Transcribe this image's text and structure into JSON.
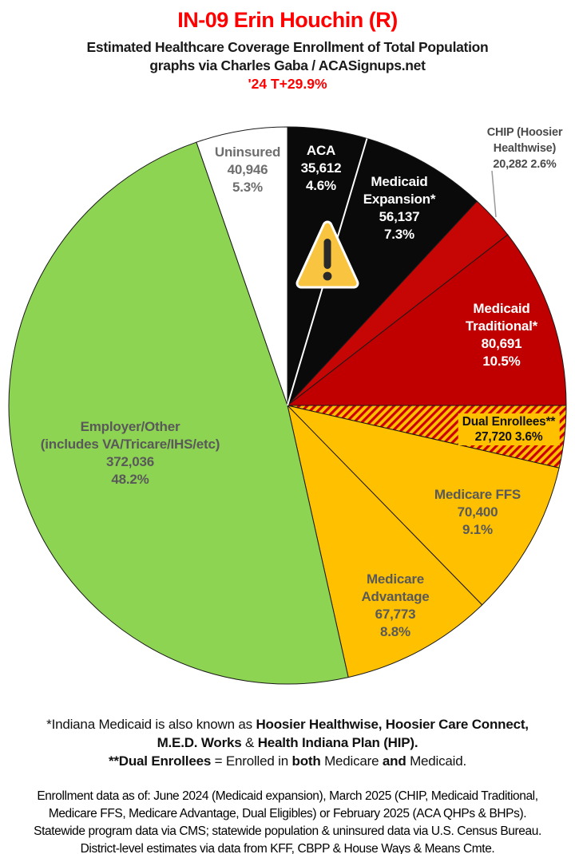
{
  "header": {
    "title": "IN-09 Erin Houchin (R)",
    "title_color": "#FF0000",
    "subtitle_line1": "Estimated Healthcare Coverage Enrollment of Total Population",
    "subtitle_line2": "graphs via Charles Gaba / ACASignups.net",
    "trend": "'24 T+29.9%",
    "trend_color": "#FF0000"
  },
  "chart_data": {
    "type": "pie",
    "title": "IN-09 Erin Houchin (R) — Estimated Healthcare Coverage Enrollment of Total Population",
    "legend_position": "labels-on-slices",
    "start_angle_deg_from_12_oclock": 0,
    "direction": "clockwise",
    "hatch": {
      "bg": "#FFC000",
      "stripe": "#CC0000"
    },
    "slices": [
      {
        "id": "aca",
        "label": "ACA",
        "label_lines": [
          "ACA"
        ],
        "value": 35612,
        "value_display": "35,612",
        "pct": 4.6,
        "pct_display": "4.6%",
        "color": "#0A0A0A",
        "label_color": "#FFFFFF",
        "label_style": "stacked"
      },
      {
        "id": "medicaid-expansion",
        "label": "Medicaid Expansion*",
        "label_lines": [
          "Medicaid",
          "Expansion*"
        ],
        "value": 56137,
        "value_display": "56,137",
        "pct": 7.3,
        "pct_display": "7.3%",
        "color": "#0A0A0A",
        "label_color": "#FFFFFF",
        "label_style": "stacked"
      },
      {
        "id": "chip",
        "label": "CHIP (Hoosier Healthwise)",
        "label_lines": [
          "CHIP (Hoosier",
          "Healthwise)"
        ],
        "value": 20282,
        "value_display": "20,282",
        "pct": 2.6,
        "pct_display": "2.6%",
        "color": "#C60505",
        "label_color": "#4A4A4A",
        "label_style": "inline",
        "label_outside": true
      },
      {
        "id": "medicaid-traditional",
        "label": "Medicaid Traditional*",
        "label_lines": [
          "Medicaid",
          "Traditional*"
        ],
        "value": 80691,
        "value_display": "80,691",
        "pct": 10.5,
        "pct_display": "10.5%",
        "color": "#C00000",
        "label_color": "#FFFFFF",
        "label_style": "stacked"
      },
      {
        "id": "dual-enrollees",
        "label": "Dual Enrollees**",
        "label_lines": [
          "Dual Enrollees**"
        ],
        "value": 27720,
        "value_display": "27,720",
        "pct": 3.6,
        "pct_display": "3.6%",
        "color": "hatch",
        "label_color": "#121212",
        "label_style": "inline",
        "label_bg": "#FFC000"
      },
      {
        "id": "medicare-ffs",
        "label": "Medicare FFS",
        "label_lines": [
          "Medicare FFS"
        ],
        "value": 70400,
        "value_display": "70,400",
        "pct": 9.1,
        "pct_display": "9.1%",
        "color": "#FFC000",
        "label_color": "#595959",
        "label_style": "stacked"
      },
      {
        "id": "medicare-advantage",
        "label": "Medicare Advantage",
        "label_lines": [
          "Medicare",
          "Advantage"
        ],
        "value": 67773,
        "value_display": "67,773",
        "pct": 8.8,
        "pct_display": "8.8%",
        "color": "#FFC000",
        "label_color": "#595959",
        "label_style": "stacked"
      },
      {
        "id": "employer-other",
        "label": "Employer/Other (includes VA/Tricare/IHS/etc)",
        "label_lines": [
          "Employer/Other",
          "(includes VA/Tricare/IHS/etc)"
        ],
        "value": 372036,
        "value_display": "372,036",
        "pct": 48.2,
        "pct_display": "48.2%",
        "color": "#8ED453",
        "label_color": "#595959",
        "label_style": "stacked"
      },
      {
        "id": "uninsured",
        "label": "Uninsured",
        "label_lines": [
          "Uninsured"
        ],
        "value": 40946,
        "value_display": "40,946",
        "pct": 5.3,
        "pct_display": "5.3%",
        "color": "#FFFFFF",
        "label_color": "#6E6E6E",
        "label_style": "stacked"
      }
    ],
    "annotations": {
      "warning_icon": "warning-triangle",
      "warning_icon_colors": {
        "fill": "#F9C440",
        "outline": "#FFFFFF",
        "glyph": "#2A2A2A"
      },
      "chip_leader_line_color": "#999999",
      "slice_divider_white": "between ACA and Medicaid Expansion"
    }
  },
  "footnotes": {
    "lines": [
      [
        {
          "t": "*Indiana Medicaid is also known as ",
          "b": false
        },
        {
          "t": "Hoosier Healthwise, Hoosier Care Connect,",
          "b": true
        }
      ],
      [
        {
          "t": "M.E.D. Works",
          "b": true
        },
        {
          "t": " & ",
          "b": false
        },
        {
          "t": "Health Indiana Plan (HIP).",
          "b": true
        }
      ],
      [
        {
          "t": "**Dual Enrollees",
          "b": true
        },
        {
          "t": " = Enrolled in ",
          "b": false
        },
        {
          "t": "both",
          "b": true
        },
        {
          "t": " Medicare ",
          "b": false
        },
        {
          "t": "and",
          "b": true
        },
        {
          "t": " Medicaid.",
          "b": false
        }
      ]
    ]
  },
  "source": {
    "lines": [
      "Enrollment data as of: June 2024 (Medicaid expansion), March 2025 (CHIP, Medicaid Traditional,",
      "Medicare FFS, Medicare Advantage, Dual Eligibles) or February 2025 (ACA QHPs & BHPs).",
      "Statewide program data via CMS; statewide population & uninsured data via U.S. Census Bureau.",
      "District-level estimates via data from KFF, CBPP & House Ways & Means Cmte."
    ]
  }
}
